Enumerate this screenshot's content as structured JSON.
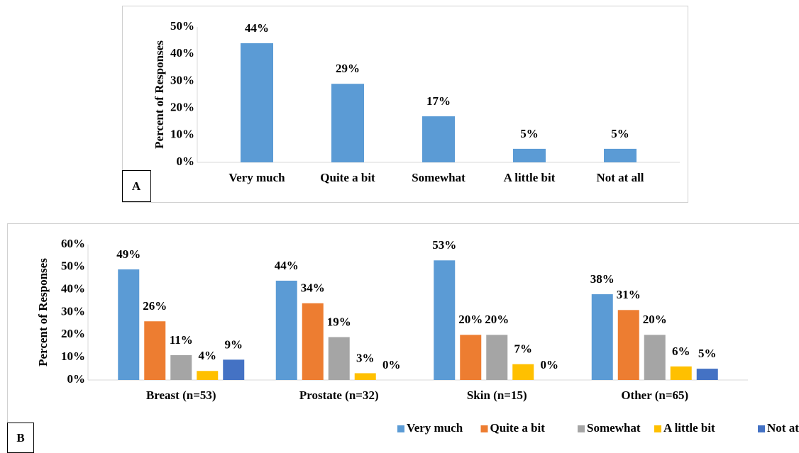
{
  "chart_data": [
    {
      "type": "bar",
      "panel_label": "A",
      "ylabel": "Percent of Responses",
      "categories": [
        "Very much",
        "Quite a bit",
        "Somewhat",
        "A little bit",
        "Not at all"
      ],
      "values": [
        44,
        29,
        17,
        5,
        5
      ],
      "value_labels": [
        "44%",
        "29%",
        "17%",
        "5%",
        "5%"
      ],
      "color": "#5b9bd5",
      "ylim": [
        0,
        50
      ],
      "yticks": [
        {
          "value": 0,
          "label": "0%"
        },
        {
          "value": 10,
          "label": "10%"
        },
        {
          "value": 20,
          "label": "20%"
        },
        {
          "value": 30,
          "label": "30%"
        },
        {
          "value": 40,
          "label": "40%"
        },
        {
          "value": 50,
          "label": "50%"
        }
      ]
    },
    {
      "type": "bar",
      "panel_label": "B",
      "ylabel": "Percent of Responses",
      "categories": [
        "Breast (n=53)",
        "Prostate (n=32)",
        "Skin (n=15)",
        "Other (n=65)"
      ],
      "series": [
        {
          "name": "Very much",
          "color": "#5b9bd5",
          "values": [
            49,
            44,
            53,
            38
          ],
          "value_labels": [
            "49%",
            "44%",
            "53%",
            "38%"
          ]
        },
        {
          "name": "Quite a bit",
          "color": "#ed7d31",
          "values": [
            26,
            34,
            20,
            31
          ],
          "value_labels": [
            "26%",
            "34%",
            "20%",
            "31%"
          ]
        },
        {
          "name": "Somewhat",
          "color": "#a5a5a5",
          "values": [
            11,
            19,
            20,
            20
          ],
          "value_labels": [
            "11%",
            "19%",
            "20%",
            "20%"
          ]
        },
        {
          "name": "A little bit",
          "color": "#ffc000",
          "values": [
            4,
            3,
            7,
            6
          ],
          "value_labels": [
            "4%",
            "3%",
            "7%",
            "6%"
          ]
        },
        {
          "name": "Not at all",
          "color": "#4472c4",
          "values": [
            9,
            0,
            0,
            5
          ],
          "value_labels": [
            "9%",
            "0%",
            "0%",
            "5%"
          ]
        }
      ],
      "ylim": [
        0,
        60
      ],
      "yticks": [
        {
          "value": 0,
          "label": "0%"
        },
        {
          "value": 10,
          "label": "10%"
        },
        {
          "value": 20,
          "label": "20%"
        },
        {
          "value": 30,
          "label": "30%"
        },
        {
          "value": 40,
          "label": "40%"
        },
        {
          "value": 50,
          "label": "50%"
        },
        {
          "value": 60,
          "label": "60%"
        }
      ],
      "legend": "bottom"
    }
  ]
}
